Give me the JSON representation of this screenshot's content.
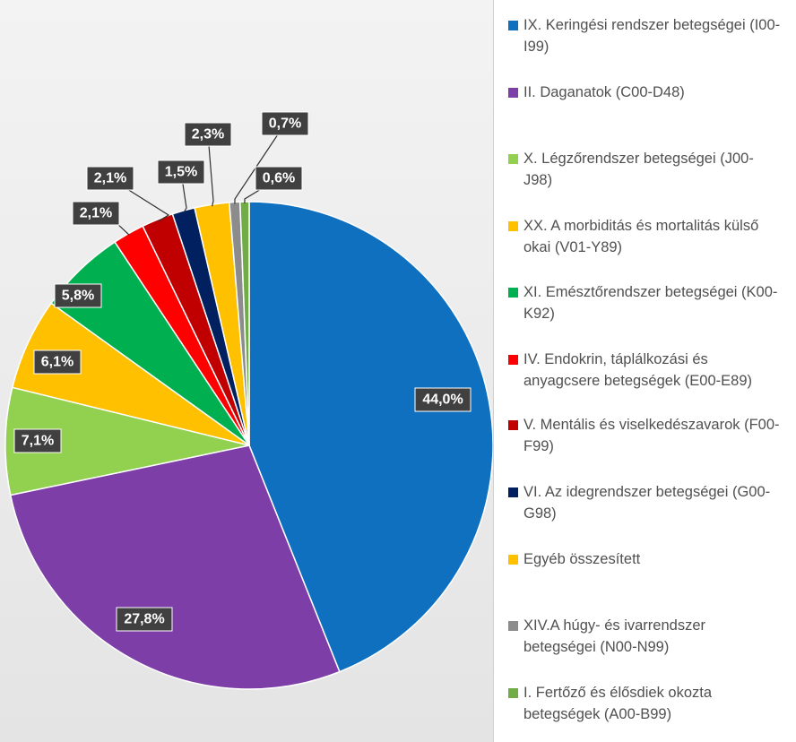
{
  "chart_data": {
    "type": "pie",
    "start_angle_deg": 0,
    "direction": "clockwise",
    "data_label_color": "#404040",
    "slices": [
      {
        "name": "IX. Keringési rendszer betegségei (I00-I99)",
        "value": 44.0,
        "label": "44,0%",
        "color": "#0F70C0"
      },
      {
        "name": "II. Daganatok (C00-D48)",
        "value": 27.8,
        "label": "27,8%",
        "color": "#7E3EA8"
      },
      {
        "name": "X. Légzőrendszer betegségei (J00-J98)",
        "value": 7.1,
        "label": "7,1%",
        "color": "#92D050"
      },
      {
        "name": "XX. A morbiditás és mortalitás külső okai (V01-Y89)",
        "value": 6.1,
        "label": "6,1%",
        "color": "#FFC000"
      },
      {
        "name": "XI. Emésztőrendszer betegségei (K00-K92)",
        "value": 5.8,
        "label": "5,8%",
        "color": "#00B050"
      },
      {
        "name": "IV. Endokrin, táplálkozási és anyagcsere betegségek (E00-E89)",
        "value": 2.1,
        "label": "2,1%",
        "color": "#FF0000"
      },
      {
        "name": "V. Mentális és viselkedészavarok (F00-F99)",
        "value": 2.1,
        "label": "2,1%",
        "color": "#C00000"
      },
      {
        "name": "VI. Az idegrendszer betegségei (G00-G98)",
        "value": 1.5,
        "label": "1,5%",
        "color": "#002060"
      },
      {
        "name": "Egyéb összesített",
        "value": 2.3,
        "label": "2,3%",
        "color": "#FFC000"
      },
      {
        "name": "XIV.A húgy- és ivarrendszer betegségei (N00-N99)",
        "value": 0.7,
        "label": "0,7%",
        "color": "#8C8C8C"
      },
      {
        "name": "I. Fertőző és élősdiek okozta betegségek  (A00-B99)",
        "value": 0.6,
        "label": "0,6%",
        "color": "#70AD47"
      }
    ],
    "legend": {
      "placement": "right",
      "items": [
        {
          "text": "IX. Keringési rendszer betegségei (I00-I99)",
          "color": "#0F70C0"
        },
        {
          "text": "II. Daganatok (C00-D48)",
          "color": "#7E3EA8"
        },
        {
          "text": "X. Légzőrendszer betegségei (J00-J98)",
          "color": "#92D050"
        },
        {
          "text": "XX. A morbiditás és mortalitás külső okai (V01-Y89)",
          "color": "#FFC000"
        },
        {
          "text": "XI. Emésztőrendszer betegségei (K00-K92)",
          "color": "#00B050"
        },
        {
          "text": "IV. Endokrin, táplálkozási és anyagcsere betegségek (E00-E89)",
          "color": "#FF0000"
        },
        {
          "text": "V. Mentális és viselkedészavarok (F00-F99)",
          "color": "#C00000"
        },
        {
          "text": "VI. Az idegrendszer betegségei (G00-G98)",
          "color": "#002060"
        },
        {
          "text": "Egyéb összesített",
          "color": "#FFC000"
        },
        {
          "text": "XIV.A húgy- és ivarrendszer betegségei (N00-N99)",
          "color": "#8C8C8C"
        },
        {
          "text": "I. Fertőző és élősdiek okozta betegségek  (A00-B99)",
          "color": "#70AD47"
        }
      ]
    }
  }
}
